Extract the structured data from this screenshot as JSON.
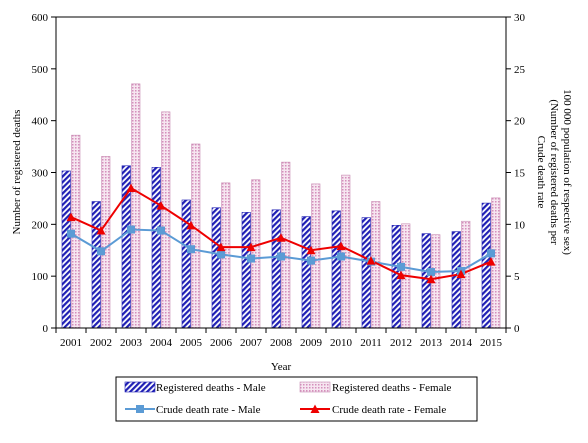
{
  "chart_data": {
    "type": "bar",
    "x": [
      "2001",
      "2002",
      "2003",
      "2004",
      "2005",
      "2006",
      "2007",
      "2008",
      "2009",
      "2010",
      "2011",
      "2012",
      "2013",
      "2014",
      "2015"
    ],
    "xlabel": "Year",
    "ylabel_left": "Number of registered deaths",
    "ylabel_right_line1": "Crude death rate",
    "ylabel_right_line2": "(Number of registered deaths per",
    "ylabel_right_line3": "100 000 population of respective sex)",
    "ylim_left": [
      0,
      600
    ],
    "yticks_left": [
      "0",
      "100",
      "200",
      "300",
      "400",
      "500",
      "600"
    ],
    "ylim_right": [
      0,
      30
    ],
    "yticks_right": [
      "0",
      "5",
      "10",
      "15",
      "20",
      "25",
      "30"
    ],
    "grid": false,
    "legend_position": "bottom",
    "series": [
      {
        "name": "Registered deaths - Male",
        "kind": "bar",
        "axis": "left",
        "color": "#1f1fb4",
        "values": [
          303,
          244,
          313,
          310,
          247,
          232,
          223,
          228,
          215,
          226,
          213,
          198,
          182,
          186,
          241
        ]
      },
      {
        "name": "Registered deaths - Female",
        "kind": "bar",
        "axis": "left",
        "color": "#d9a6c8",
        "values": [
          372,
          331,
          471,
          417,
          355,
          280,
          286,
          320,
          278,
          295,
          244,
          201,
          180,
          206,
          251
        ]
      },
      {
        "name": "Crude death rate - Male",
        "kind": "line",
        "axis": "right",
        "color": "#5b9bd5",
        "values": [
          9.1,
          7.4,
          9.5,
          9.4,
          7.6,
          7.1,
          6.7,
          6.9,
          6.5,
          6.9,
          6.4,
          5.9,
          5.4,
          5.5,
          7.2
        ]
      },
      {
        "name": "Crude death rate - Female",
        "kind": "line",
        "axis": "right",
        "color": "#ee0000",
        "values": [
          10.7,
          9.4,
          13.5,
          11.8,
          9.9,
          7.8,
          7.8,
          8.7,
          7.5,
          7.9,
          6.5,
          5.1,
          4.7,
          5.2,
          6.4
        ]
      }
    ]
  }
}
